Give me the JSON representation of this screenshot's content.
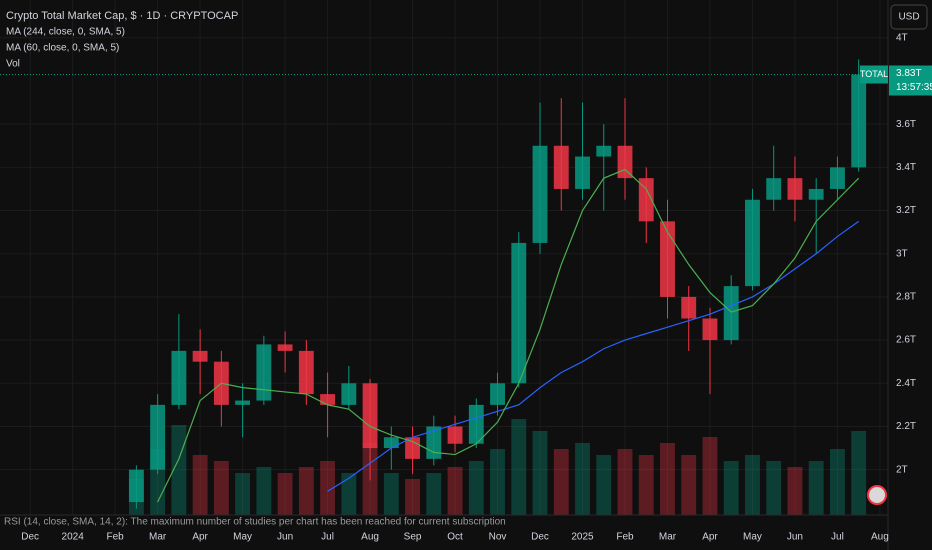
{
  "chart_data": {
    "type": "candlestick",
    "title": "Crypto Total Market Cap, $ · 1D · CRYPTOCAP",
    "volume_name": "Vol",
    "currency": "USD",
    "symbol": "TOTAL",
    "last_price": {
      "value": 3.83,
      "label": "3.83T"
    },
    "countdown": "13:57:35",
    "notice": "RSI (14, close, SMA, 14, 2): The maximum number of studies per chart has been reached for current subscription",
    "up_color": "#089981",
    "down_color": "#f23645",
    "x": [
      2.5,
      3,
      3.5,
      4,
      4.5,
      5,
      5.5,
      6,
      6.5,
      7,
      7.5,
      8,
      8.5,
      9,
      9.5,
      10,
      10.5,
      11,
      11.5,
      12,
      12.5,
      13,
      13.5,
      14,
      14.5,
      15,
      15.5,
      16,
      16.5,
      17,
      17.5,
      18,
      18.5,
      19,
      19.5
    ],
    "open": [
      1.85,
      2.0,
      2.3,
      2.55,
      2.5,
      2.3,
      2.32,
      2.58,
      2.55,
      2.35,
      2.3,
      2.4,
      2.1,
      2.15,
      2.05,
      2.2,
      2.12,
      2.3,
      2.4,
      3.05,
      3.5,
      3.3,
      3.45,
      3.5,
      3.35,
      3.15,
      2.8,
      2.7,
      2.6,
      2.85,
      3.25,
      3.35,
      3.25,
      3.3,
      3.4
    ],
    "high": [
      2.02,
      2.35,
      2.72,
      2.65,
      2.55,
      2.4,
      2.62,
      2.64,
      2.6,
      2.45,
      2.48,
      2.42,
      2.2,
      2.2,
      2.25,
      2.25,
      2.33,
      2.45,
      3.1,
      3.7,
      3.72,
      3.7,
      3.6,
      3.72,
      3.4,
      3.25,
      2.85,
      2.75,
      2.9,
      3.3,
      3.5,
      3.45,
      3.35,
      3.45,
      3.9
    ],
    "low": [
      1.82,
      1.98,
      2.28,
      2.35,
      2.2,
      2.15,
      2.3,
      2.45,
      2.3,
      2.15,
      2.28,
      1.95,
      2.0,
      1.98,
      2.02,
      2.08,
      2.1,
      2.25,
      2.38,
      3.0,
      3.2,
      3.25,
      3.2,
      3.25,
      3.05,
      2.7,
      2.55,
      2.35,
      2.58,
      2.83,
      3.2,
      3.15,
      3.0,
      3.25,
      3.38
    ],
    "close": [
      2.0,
      2.3,
      2.55,
      2.5,
      2.3,
      2.32,
      2.58,
      2.55,
      2.35,
      2.3,
      2.4,
      2.1,
      2.15,
      2.05,
      2.2,
      2.12,
      2.3,
      2.4,
      3.05,
      3.5,
      3.3,
      3.45,
      3.5,
      3.35,
      3.15,
      2.8,
      2.7,
      2.6,
      2.85,
      3.25,
      3.35,
      3.25,
      3.3,
      3.4,
      3.83
    ],
    "volume": [
      30,
      55,
      75,
      50,
      45,
      35,
      40,
      35,
      40,
      45,
      35,
      60,
      35,
      30,
      35,
      40,
      45,
      55,
      80,
      70,
      55,
      60,
      50,
      55,
      50,
      60,
      50,
      65,
      45,
      50,
      45,
      40,
      45,
      55,
      70
    ],
    "vol_ylim": [
      0,
      100
    ],
    "series": [
      {
        "name": "MA (244, close, 0, SMA, 5)",
        "color": "#2962ff",
        "values": [
          null,
          null,
          null,
          null,
          null,
          null,
          null,
          null,
          null,
          1.9,
          1.96,
          2.03,
          2.1,
          2.15,
          2.18,
          2.21,
          2.24,
          2.27,
          2.3,
          2.38,
          2.45,
          2.5,
          2.56,
          2.6,
          2.63,
          2.66,
          2.69,
          2.72,
          2.76,
          2.8,
          2.86,
          2.93,
          3.0,
          3.08,
          3.15
        ]
      },
      {
        "name": "MA (60, close, 0, SMA, 5)",
        "color": "#4caf50",
        "values": [
          null,
          1.85,
          2.05,
          2.32,
          2.4,
          2.38,
          2.37,
          2.36,
          2.35,
          2.3,
          2.28,
          2.2,
          2.16,
          2.13,
          2.08,
          2.07,
          2.12,
          2.22,
          2.4,
          2.65,
          2.95,
          3.2,
          3.35,
          3.39,
          3.3,
          3.1,
          2.95,
          2.82,
          2.73,
          2.76,
          2.86,
          2.98,
          3.15,
          3.25,
          3.35
        ]
      }
    ],
    "xlim": [
      -0.71,
      20.19
    ],
    "xticks": [
      {
        "value": 0,
        "label": "Dec"
      },
      {
        "value": 1,
        "label": "2024"
      },
      {
        "value": 2,
        "label": "Feb"
      },
      {
        "value": 3,
        "label": "Mar"
      },
      {
        "value": 4,
        "label": "Apr"
      },
      {
        "value": 5,
        "label": "May"
      },
      {
        "value": 6,
        "label": "Jun"
      },
      {
        "value": 7,
        "label": "Jul"
      },
      {
        "value": 8,
        "label": "Aug"
      },
      {
        "value": 9,
        "label": "Sep"
      },
      {
        "value": 10,
        "label": "Oct"
      },
      {
        "value": 11,
        "label": "Nov"
      },
      {
        "value": 12,
        "label": "Dec"
      },
      {
        "value": 13,
        "label": "2025"
      },
      {
        "value": 14,
        "label": "Feb"
      },
      {
        "value": 15,
        "label": "Mar"
      },
      {
        "value": 16,
        "label": "Apr"
      },
      {
        "value": 17,
        "label": "May"
      },
      {
        "value": 18,
        "label": "Jun"
      },
      {
        "value": 19,
        "label": "Jul"
      },
      {
        "value": 20,
        "label": "Aug"
      }
    ],
    "ylim": [
      1.79,
      4.175
    ],
    "yticks": [
      {
        "value": 2,
        "label": "2T"
      },
      {
        "value": 2.2,
        "label": "2.2T"
      },
      {
        "value": 2.4,
        "label": "2.4T"
      },
      {
        "value": 2.6,
        "label": "2.6T"
      },
      {
        "value": 2.8,
        "label": "2.8T"
      },
      {
        "value": 3,
        "label": "3T"
      },
      {
        "value": 3.2,
        "label": "3.2T"
      },
      {
        "value": 3.4,
        "label": "3.4T"
      },
      {
        "value": 3.6,
        "label": "3.6T"
      },
      {
        "value": 4,
        "label": "4T"
      }
    ],
    "grid": true
  }
}
